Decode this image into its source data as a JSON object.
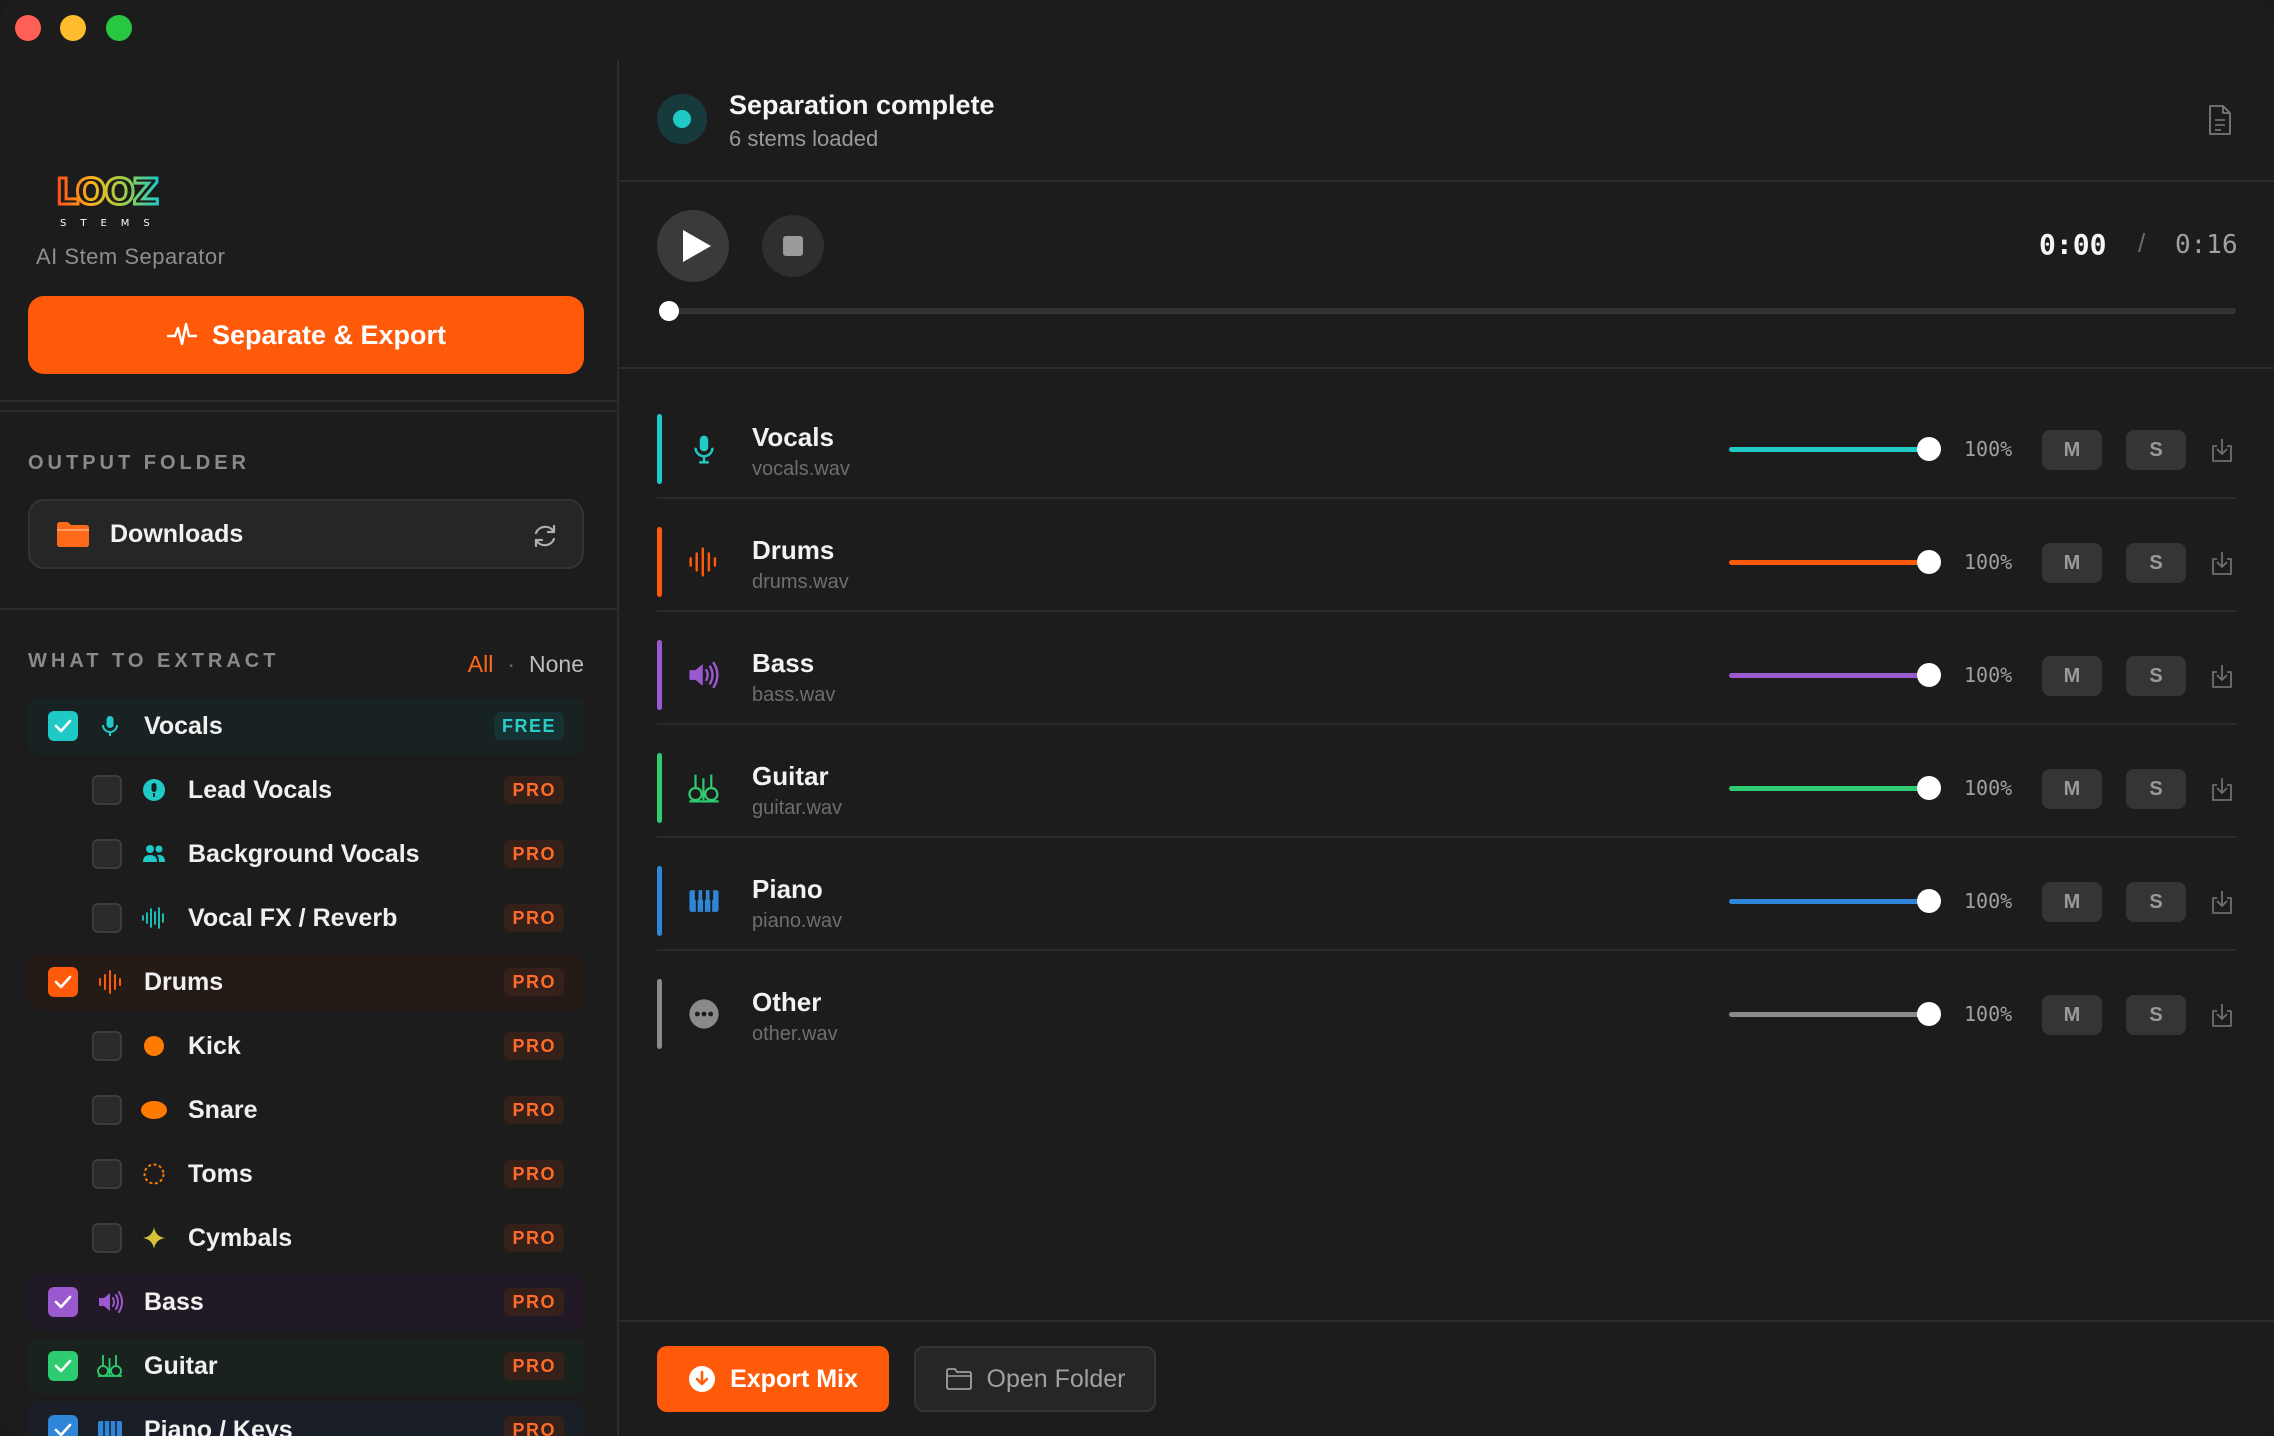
{
  "window": {
    "controls": [
      "close",
      "minimize",
      "zoom"
    ]
  },
  "sidebar": {
    "logo_text": "LOOZ",
    "logo_subtext": "STEMS",
    "subtitle": "AI Stem Separator",
    "separate_button": "Separate & Export",
    "output_folder": {
      "label": "OUTPUT FOLDER",
      "value": "Downloads"
    },
    "extract": {
      "label": "WHAT TO EXTRACT",
      "select_all": "All",
      "separator": "·",
      "select_none": "None",
      "items": [
        {
          "name": "Vocals",
          "level": "parent",
          "checked": true,
          "badge": "FREE",
          "color": "#1fc9c6",
          "icon": "microphone-icon"
        },
        {
          "name": "Lead Vocals",
          "level": "child",
          "checked": false,
          "badge": "PRO",
          "color": "#1fc9c6",
          "icon": "lead-vocal-icon"
        },
        {
          "name": "Background Vocals",
          "level": "child",
          "checked": false,
          "badge": "PRO",
          "color": "#1fc9c6",
          "icon": "people-icon"
        },
        {
          "name": "Vocal FX / Reverb",
          "level": "child",
          "checked": false,
          "badge": "PRO",
          "color": "#1fc9c6",
          "icon": "waveform-icon"
        },
        {
          "name": "Drums",
          "level": "parent",
          "checked": true,
          "badge": "PRO",
          "color": "#ff5a0a",
          "icon": "drums-waveform-icon"
        },
        {
          "name": "Kick",
          "level": "child",
          "checked": false,
          "badge": "PRO",
          "color": "#ff7a00",
          "icon": "kick-icon"
        },
        {
          "name": "Snare",
          "level": "child",
          "checked": false,
          "badge": "PRO",
          "color": "#ff7a00",
          "icon": "snare-icon"
        },
        {
          "name": "Toms",
          "level": "child",
          "checked": false,
          "badge": "PRO",
          "color": "#ff7a00",
          "icon": "toms-icon"
        },
        {
          "name": "Cymbals",
          "level": "child",
          "checked": false,
          "badge": "PRO",
          "color": "#d6c23a",
          "icon": "sparkle-icon"
        },
        {
          "name": "Bass",
          "level": "parent",
          "checked": true,
          "badge": "PRO",
          "color": "#9b59d0",
          "icon": "speaker-icon"
        },
        {
          "name": "Guitar",
          "level": "parent",
          "checked": true,
          "badge": "PRO",
          "color": "#2ecc71",
          "icon": "guitar-icon"
        },
        {
          "name": "Piano / Keys",
          "level": "parent",
          "checked": true,
          "badge": "PRO",
          "color": "#2f86d8",
          "icon": "piano-icon"
        }
      ]
    }
  },
  "main": {
    "status": {
      "title": "Separation complete",
      "subtitle": "6 stems loaded"
    },
    "transport": {
      "current_time": "0:00",
      "separator": "/",
      "total_time": "0:16",
      "progress": 0
    },
    "stems": [
      {
        "name": "Vocals",
        "file": "vocals.wav",
        "volume": "100%",
        "volume_level": 1.0,
        "color": "#1fc9c6",
        "icon": "microphone-icon",
        "mute": "M",
        "solo": "S"
      },
      {
        "name": "Drums",
        "file": "drums.wav",
        "volume": "100%",
        "volume_level": 1.0,
        "color": "#ff5a0a",
        "icon": "drums-waveform-icon",
        "mute": "M",
        "solo": "S"
      },
      {
        "name": "Bass",
        "file": "bass.wav",
        "volume": "100%",
        "volume_level": 1.0,
        "color": "#9b59d0",
        "icon": "speaker-icon",
        "mute": "M",
        "solo": "S"
      },
      {
        "name": "Guitar",
        "file": "guitar.wav",
        "volume": "100%",
        "volume_level": 1.0,
        "color": "#2ecc71",
        "icon": "guitar-icon",
        "mute": "M",
        "solo": "S"
      },
      {
        "name": "Piano",
        "file": "piano.wav",
        "volume": "100%",
        "volume_level": 1.0,
        "color": "#2f86d8",
        "icon": "piano-icon",
        "mute": "M",
        "solo": "S"
      },
      {
        "name": "Other",
        "file": "other.wav",
        "volume": "100%",
        "volume_level": 1.0,
        "color": "#8a8a8a",
        "icon": "more-icon",
        "mute": "M",
        "solo": "S"
      }
    ],
    "export_button": "Export Mix",
    "open_folder_button": "Open Folder"
  },
  "colors": {
    "accent": "#ff5a0a",
    "teal": "#1fc9c6",
    "background": "#1c1c1c"
  }
}
